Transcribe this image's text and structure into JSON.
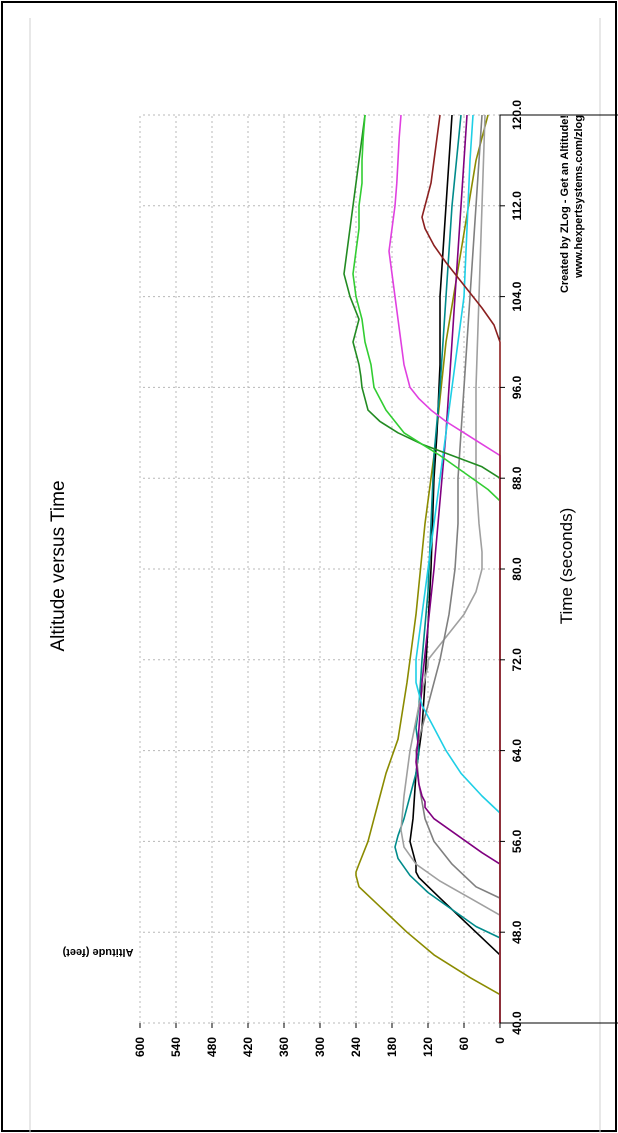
{
  "chart_data": {
    "type": "line",
    "title": "Altitude versus Time",
    "xlabel": "Time (seconds)",
    "ylabel": "Altitude (feet)",
    "credit": [
      "Created by ZLog - Get an Altitude!",
      "www.hexpertsystems.com/zlog"
    ],
    "xlim": [
      40,
      120
    ],
    "ylim": [
      0,
      600
    ],
    "x_ticks": [
      "40.0",
      "48.0",
      "56.0",
      "64.0",
      "72.0",
      "80.0",
      "88.0",
      "96.0",
      "104.0",
      "112.0",
      "120.0"
    ],
    "y_ticks": [
      "0",
      "60",
      "120",
      "180",
      "240",
      "300",
      "360",
      "420",
      "480",
      "540",
      "600"
    ],
    "grid": true,
    "series": [
      {
        "color": "#8b8b00",
        "points": [
          [
            40,
            0
          ],
          [
            42.5,
            0
          ],
          [
            44,
            50
          ],
          [
            46,
            110
          ],
          [
            48,
            155
          ],
          [
            50,
            195
          ],
          [
            52,
            235
          ],
          [
            53,
            240
          ],
          [
            53.3,
            240
          ],
          [
            54,
            235
          ],
          [
            56,
            220
          ],
          [
            58,
            210
          ],
          [
            60,
            200
          ],
          [
            62,
            190
          ],
          [
            65,
            170
          ],
          [
            70,
            155
          ],
          [
            76,
            140
          ],
          [
            84,
            125
          ],
          [
            90,
            110
          ],
          [
            100,
            90
          ],
          [
            108,
            65
          ],
          [
            116,
            40
          ],
          [
            120,
            20
          ]
        ]
      },
      {
        "color": "#000000",
        "points": [
          [
            40,
            0
          ],
          [
            46,
            0
          ],
          [
            47,
            20
          ],
          [
            49,
            60
          ],
          [
            51,
            100
          ],
          [
            52.8,
            135
          ],
          [
            53.3,
            140
          ],
          [
            54,
            140
          ],
          [
            56,
            150
          ],
          [
            58,
            145
          ],
          [
            62,
            140
          ],
          [
            66,
            130
          ],
          [
            70,
            125
          ],
          [
            75,
            120
          ],
          [
            80,
            115
          ],
          [
            88,
            110
          ],
          [
            92,
            105
          ],
          [
            98,
            100
          ],
          [
            104,
            100
          ],
          [
            112,
            90
          ],
          [
            120,
            80
          ]
        ]
      },
      {
        "color": "#008b8b",
        "points": [
          [
            40,
            0
          ],
          [
            47.5,
            0
          ],
          [
            48.5,
            40
          ],
          [
            50,
            80
          ],
          [
            51.5,
            120
          ],
          [
            53,
            150
          ],
          [
            54.5,
            170
          ],
          [
            55.5,
            175
          ],
          [
            56.5,
            170
          ],
          [
            58,
            160
          ],
          [
            60,
            150
          ],
          [
            62,
            140
          ],
          [
            64,
            135
          ],
          [
            66,
            140
          ],
          [
            68,
            135
          ],
          [
            72,
            130
          ],
          [
            78,
            120
          ],
          [
            84,
            115
          ],
          [
            90,
            110
          ],
          [
            96,
            100
          ],
          [
            104,
            90
          ],
          [
            112,
            80
          ],
          [
            120,
            65
          ]
        ]
      },
      {
        "color": "#a0a0a0",
        "points": [
          [
            40,
            0
          ],
          [
            49.5,
            0
          ],
          [
            51,
            50
          ],
          [
            52.5,
            100
          ],
          [
            54,
            140
          ],
          [
            55.5,
            160
          ],
          [
            57,
            165
          ],
          [
            60,
            160
          ],
          [
            64,
            150
          ],
          [
            68,
            135
          ],
          [
            71.5,
            120
          ],
          [
            72,
            120
          ],
          [
            74,
            90
          ],
          [
            76,
            60
          ],
          [
            78,
            40
          ],
          [
            80,
            30
          ],
          [
            81.5,
            30
          ],
          [
            84,
            35
          ],
          [
            88,
            40
          ],
          [
            96,
            40
          ],
          [
            104,
            35
          ],
          [
            112,
            30
          ],
          [
            120,
            25
          ]
        ]
      },
      {
        "color": "#808080",
        "points": [
          [
            40,
            0
          ],
          [
            51,
            0
          ],
          [
            52,
            40
          ],
          [
            54,
            80
          ],
          [
            56,
            110
          ],
          [
            58,
            125
          ],
          [
            61,
            135
          ],
          [
            64,
            140
          ],
          [
            68,
            120
          ],
          [
            72,
            100
          ],
          [
            76,
            85
          ],
          [
            80,
            75
          ],
          [
            84,
            70
          ],
          [
            88,
            70
          ],
          [
            92,
            65
          ],
          [
            96,
            60
          ],
          [
            100,
            55
          ],
          [
            104,
            50
          ],
          [
            108,
            45
          ],
          [
            112,
            40
          ],
          [
            116,
            35
          ],
          [
            120,
            30
          ]
        ]
      },
      {
        "color": "#800080",
        "points": [
          [
            40,
            0
          ],
          [
            54,
            0
          ],
          [
            55,
            30
          ],
          [
            56.5,
            70
          ],
          [
            58,
            110
          ],
          [
            59,
            125
          ],
          [
            59.5,
            125
          ],
          [
            60,
            130
          ],
          [
            61,
            135
          ],
          [
            63,
            140
          ],
          [
            66,
            135
          ],
          [
            70,
            130
          ],
          [
            75,
            120
          ],
          [
            80,
            110
          ],
          [
            86,
            100
          ],
          [
            92,
            90
          ],
          [
            100,
            80
          ],
          [
            108,
            70
          ],
          [
            116,
            60
          ],
          [
            120,
            55
          ]
        ]
      },
      {
        "color": "#1ecfe6",
        "points": [
          [
            40,
            0
          ],
          [
            58.5,
            0
          ],
          [
            60,
            30
          ],
          [
            62,
            65
          ],
          [
            64,
            90
          ],
          [
            66,
            110
          ],
          [
            68,
            130
          ],
          [
            70,
            140
          ],
          [
            72,
            140
          ],
          [
            76,
            130
          ],
          [
            80,
            120
          ],
          [
            84,
            110
          ],
          [
            88,
            100
          ],
          [
            92,
            90
          ],
          [
            96,
            80
          ],
          [
            100,
            70
          ],
          [
            104,
            60
          ],
          [
            110,
            55
          ],
          [
            116,
            50
          ],
          [
            120,
            45
          ]
        ]
      },
      {
        "color": "#228b22",
        "points": [
          [
            40,
            0
          ],
          [
            44,
            0
          ],
          [
            60,
            0
          ],
          [
            70,
            0
          ],
          [
            80,
            0
          ],
          [
            88,
            0
          ],
          [
            89,
            30
          ],
          [
            90,
            80
          ],
          [
            91,
            130
          ],
          [
            92,
            170
          ],
          [
            93,
            200
          ],
          [
            94,
            220
          ],
          [
            95,
            225
          ],
          [
            96,
            230
          ],
          [
            97,
            232
          ],
          [
            98,
            235
          ],
          [
            99,
            240
          ],
          [
            100,
            245
          ],
          [
            101,
            240
          ],
          [
            102,
            235
          ],
          [
            104,
            250
          ],
          [
            106,
            260
          ],
          [
            108,
            255
          ],
          [
            110,
            250
          ],
          [
            112,
            245
          ],
          [
            114,
            240
          ],
          [
            116,
            235
          ],
          [
            118,
            230
          ],
          [
            120,
            225
          ]
        ]
      },
      {
        "color": "#32cd32",
        "points": [
          [
            40,
            0
          ],
          [
            86,
            0
          ],
          [
            87,
            20
          ],
          [
            88.5,
            60
          ],
          [
            90,
            100
          ],
          [
            91,
            130
          ],
          [
            92,
            160
          ],
          [
            94,
            190
          ],
          [
            96,
            210
          ],
          [
            98,
            215
          ],
          [
            100,
            225
          ],
          [
            102,
            230
          ],
          [
            104,
            240
          ],
          [
            106,
            245
          ],
          [
            108,
            240
          ],
          [
            110,
            235
          ],
          [
            112,
            235
          ],
          [
            114,
            230
          ],
          [
            116,
            230
          ],
          [
            118,
            228
          ],
          [
            120,
            225
          ]
        ]
      },
      {
        "color": "#e040e0",
        "points": [
          [
            40,
            0
          ],
          [
            90,
            0
          ],
          [
            91,
            30
          ],
          [
            92,
            60
          ],
          [
            93,
            90
          ],
          [
            94,
            115
          ],
          [
            95,
            135
          ],
          [
            96,
            150
          ],
          [
            98,
            160
          ],
          [
            100,
            165
          ],
          [
            102,
            170
          ],
          [
            104,
            175
          ],
          [
            106,
            180
          ],
          [
            108,
            185
          ],
          [
            110,
            180
          ],
          [
            112,
            175
          ],
          [
            114,
            172
          ],
          [
            116,
            170
          ],
          [
            118,
            168
          ],
          [
            120,
            165
          ]
        ]
      },
      {
        "color": "#8b2020",
        "points": [
          [
            40,
            0
          ],
          [
            100,
            0
          ],
          [
            101.5,
            10
          ],
          [
            103,
            30
          ],
          [
            105,
            60
          ],
          [
            107,
            90
          ],
          [
            108.5,
            110
          ],
          [
            110,
            125
          ],
          [
            111,
            130
          ],
          [
            112,
            125
          ],
          [
            113,
            120
          ],
          [
            114,
            115
          ],
          [
            116,
            110
          ],
          [
            118,
            105
          ],
          [
            120,
            100
          ]
        ]
      }
    ]
  }
}
